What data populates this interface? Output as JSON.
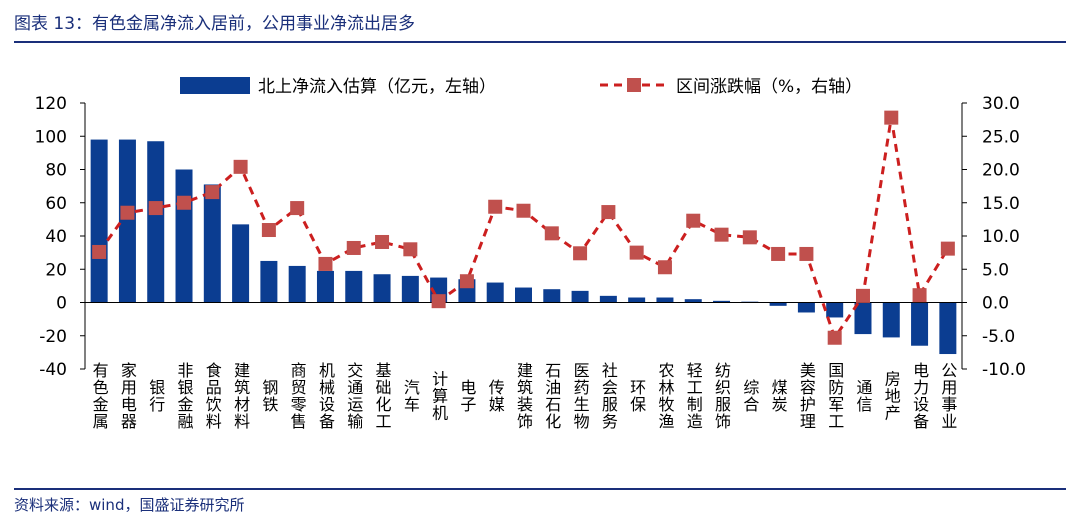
{
  "header": {
    "title": "图表 13：有色金属净流入居前，公用事业净流出居多"
  },
  "footer": {
    "source": "资料来源：wind，国盛证券研究所"
  },
  "colors": {
    "bar": "#0b3d91",
    "line": "#cc1f1f",
    "marker": "#c0504d",
    "title": "#1a2f7a"
  },
  "chart_data": {
    "type": "bar",
    "categories": [
      "有色金属",
      "家用电器",
      "银行",
      "非银金融",
      "食品饮料",
      "建筑材料",
      "钢铁",
      "商贸零售",
      "机械设备",
      "交通运输",
      "基础化工",
      "汽车",
      "计算机",
      "电子",
      "传媒",
      "建筑装饰",
      "石油石化",
      "医药生物",
      "社会服务",
      "环保",
      "农林牧渔",
      "轻工制造",
      "纺织服饰",
      "综合",
      "煤炭",
      "美容护理",
      "国防军工",
      "通信",
      "房地产",
      "电力设备",
      "公用事业"
    ],
    "series": [
      {
        "name": "北上净流入估算（亿元，左轴）",
        "type": "bar",
        "axis": "left",
        "values": [
          98,
          98,
          97,
          80,
          71,
          47,
          25,
          22,
          19,
          19,
          17,
          16,
          15,
          14,
          12,
          9,
          8,
          7,
          4,
          3,
          3,
          2,
          1,
          0.5,
          -2,
          -6,
          -9,
          -19,
          -21,
          -26,
          -31
        ]
      },
      {
        "name": "区间涨跌幅（%，右轴）",
        "type": "line",
        "axis": "right",
        "values": [
          7.6,
          13.5,
          14.2,
          15.0,
          16.6,
          20.4,
          10.9,
          14.2,
          5.8,
          8.2,
          9.1,
          8.0,
          0.2,
          3.2,
          14.4,
          13.8,
          10.4,
          7.4,
          13.6,
          7.5,
          5.3,
          12.3,
          10.2,
          9.8,
          7.3,
          7.3,
          -5.3,
          1.0,
          27.8,
          1.1,
          8.1
        ]
      }
    ],
    "left_axis": {
      "min": -40,
      "max": 120,
      "step": 20,
      "tick_labels": [
        "-40",
        "-20",
        "0",
        "20",
        "40",
        "60",
        "80",
        "100",
        "120"
      ]
    },
    "right_axis": {
      "min": -10,
      "max": 30,
      "step": 5,
      "tick_labels": [
        "-10.0",
        "-5.0",
        "0.0",
        "5.0",
        "10.0",
        "15.0",
        "20.0",
        "25.0",
        "30.0"
      ]
    },
    "title": "图表 13：有色金属净流入居前，公用事业净流出居多",
    "legend": [
      "北上净流入估算（亿元，左轴）",
      "区间涨跌幅（%，右轴）"
    ],
    "legend_position": "top"
  }
}
